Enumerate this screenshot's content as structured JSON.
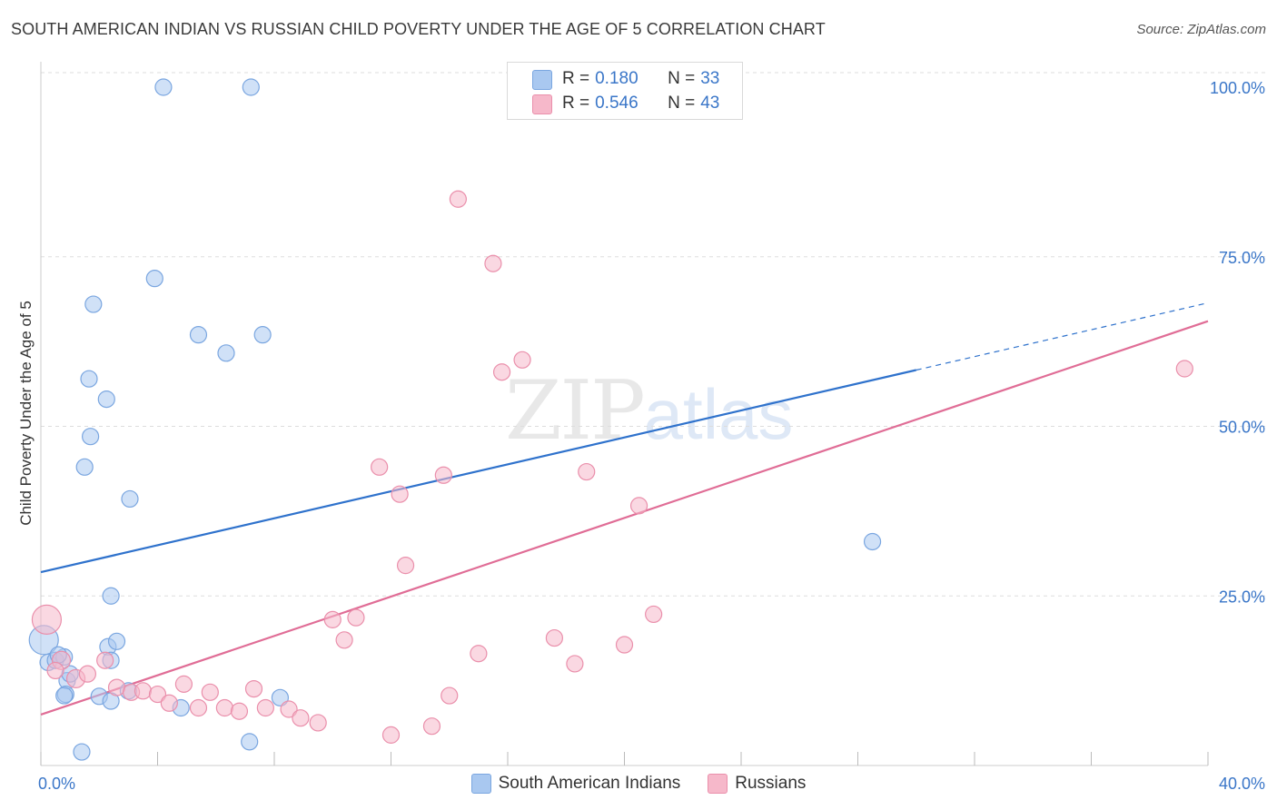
{
  "header": {
    "title": "SOUTH AMERICAN INDIAN VS RUSSIAN CHILD POVERTY UNDER THE AGE OF 5 CORRELATION CHART",
    "source": "Source: ZipAtlas.com"
  },
  "watermark": {
    "zip": "ZIP",
    "atlas": "atlas"
  },
  "stats": [
    {
      "r_label": "R =",
      "r_value": "0.180",
      "n_label": "N =",
      "n_value": "33"
    },
    {
      "r_label": "R =",
      "r_value": "0.546",
      "n_label": "N =",
      "n_value": "43"
    }
  ],
  "colors": {
    "blue_fill": "#a9c8f0",
    "blue_stroke": "#7aa6e0",
    "blue_line": "#2f72cc",
    "pink_fill": "#f6b8ca",
    "pink_stroke": "#ea8fab",
    "pink_line": "#e06d96",
    "tick_label": "#3a76c8",
    "grid": "#dddddd"
  },
  "chart_data": {
    "type": "scatter",
    "title": "SOUTH AMERICAN INDIAN VS RUSSIAN CHILD POVERTY UNDER THE AGE OF 5 CORRELATION CHART",
    "xlabel": "",
    "ylabel": "Child Poverty Under the Age of 5",
    "xlim": [
      0,
      40
    ],
    "ylim": [
      0,
      100
    ],
    "x_tick_labels": [
      "0.0%",
      "40.0%"
    ],
    "y_ticks": [
      25,
      50,
      75,
      100
    ],
    "y_tick_labels": [
      "25.0%",
      "50.0%",
      "75.0%",
      "100.0%"
    ],
    "series": [
      {
        "name": "South American Indians",
        "r": 0.18,
        "n": 33,
        "trend": {
          "start": [
            0,
            28.5
          ],
          "solid_end": [
            30,
            58.3
          ],
          "end": [
            40,
            68.2
          ]
        },
        "points": [
          [
            0.1,
            18.5,
            16
          ],
          [
            0.25,
            15.2,
            9
          ],
          [
            0.5,
            15.5,
            9
          ],
          [
            0.8,
            16,
            9
          ],
          [
            0.6,
            16.3,
            9
          ],
          [
            0.9,
            12.5,
            9
          ],
          [
            1.0,
            13.5,
            9
          ],
          [
            0.85,
            10.5,
            9
          ],
          [
            0.8,
            10.3,
            9
          ],
          [
            1.4,
            2.0,
            9
          ],
          [
            2.0,
            10.2,
            9
          ],
          [
            2.4,
            9.5,
            9
          ],
          [
            3.0,
            11.0,
            9
          ],
          [
            2.3,
            17.5,
            9
          ],
          [
            2.6,
            18.3,
            9
          ],
          [
            2.4,
            15.5,
            9
          ],
          [
            2.4,
            25.0,
            9
          ],
          [
            1.5,
            44.0,
            9
          ],
          [
            1.7,
            48.5,
            9
          ],
          [
            1.65,
            57.0,
            9
          ],
          [
            2.25,
            54.0,
            9
          ],
          [
            1.8,
            68.0,
            9
          ],
          [
            3.9,
            71.8,
            9
          ],
          [
            3.05,
            39.3,
            9
          ],
          [
            5.4,
            63.5,
            9
          ],
          [
            6.35,
            60.8,
            9
          ],
          [
            7.6,
            63.5,
            9
          ],
          [
            4.2,
            100,
            9
          ],
          [
            7.2,
            100,
            9
          ],
          [
            4.8,
            8.5,
            9
          ],
          [
            7.15,
            3.5,
            9
          ],
          [
            8.2,
            10.0,
            9
          ],
          [
            28.5,
            33.0,
            9
          ]
        ]
      },
      {
        "name": "Russians",
        "r": 0.546,
        "n": 43,
        "trend": {
          "start": [
            0,
            7.5
          ],
          "end": [
            40,
            65.5
          ]
        },
        "points": [
          [
            0.2,
            21.5,
            16
          ],
          [
            0.7,
            15.5,
            10
          ],
          [
            1.2,
            12.8,
            10
          ],
          [
            1.6,
            13.5,
            9
          ],
          [
            2.2,
            15.5,
            9
          ],
          [
            2.6,
            11.5,
            9
          ],
          [
            3.1,
            10.8,
            9
          ],
          [
            3.5,
            11.0,
            9
          ],
          [
            4.0,
            10.5,
            9
          ],
          [
            4.4,
            9.2,
            9
          ],
          [
            4.9,
            12.0,
            9
          ],
          [
            5.4,
            8.5,
            9
          ],
          [
            5.8,
            10.8,
            9
          ],
          [
            6.3,
            8.5,
            9
          ],
          [
            6.8,
            8.0,
            9
          ],
          [
            7.3,
            11.3,
            9
          ],
          [
            7.7,
            8.5,
            9
          ],
          [
            8.5,
            8.3,
            9
          ],
          [
            8.9,
            7.0,
            9
          ],
          [
            9.5,
            6.3,
            9
          ],
          [
            10.0,
            21.5,
            9
          ],
          [
            10.4,
            18.5,
            9
          ],
          [
            10.8,
            21.8,
            9
          ],
          [
            12.0,
            4.5,
            9
          ],
          [
            12.5,
            29.5,
            9
          ],
          [
            12.3,
            40.0,
            9
          ],
          [
            11.6,
            44.0,
            9
          ],
          [
            13.4,
            5.8,
            9
          ],
          [
            13.8,
            42.8,
            9
          ],
          [
            14.0,
            10.3,
            9
          ],
          [
            14.3,
            83.5,
            9
          ],
          [
            15.0,
            16.5,
            9
          ],
          [
            15.5,
            74.0,
            9
          ],
          [
            15.8,
            58.0,
            9
          ],
          [
            16.5,
            59.8,
            9
          ],
          [
            17.6,
            18.8,
            9
          ],
          [
            18.3,
            15.0,
            9
          ],
          [
            18.7,
            43.3,
            9
          ],
          [
            20.0,
            17.8,
            9
          ],
          [
            20.5,
            38.3,
            9
          ],
          [
            21.0,
            22.3,
            9
          ],
          [
            39.2,
            58.5,
            9
          ],
          [
            0.5,
            14.0,
            9
          ]
        ]
      }
    ],
    "legend": [
      "South American Indians",
      "Russians"
    ]
  }
}
